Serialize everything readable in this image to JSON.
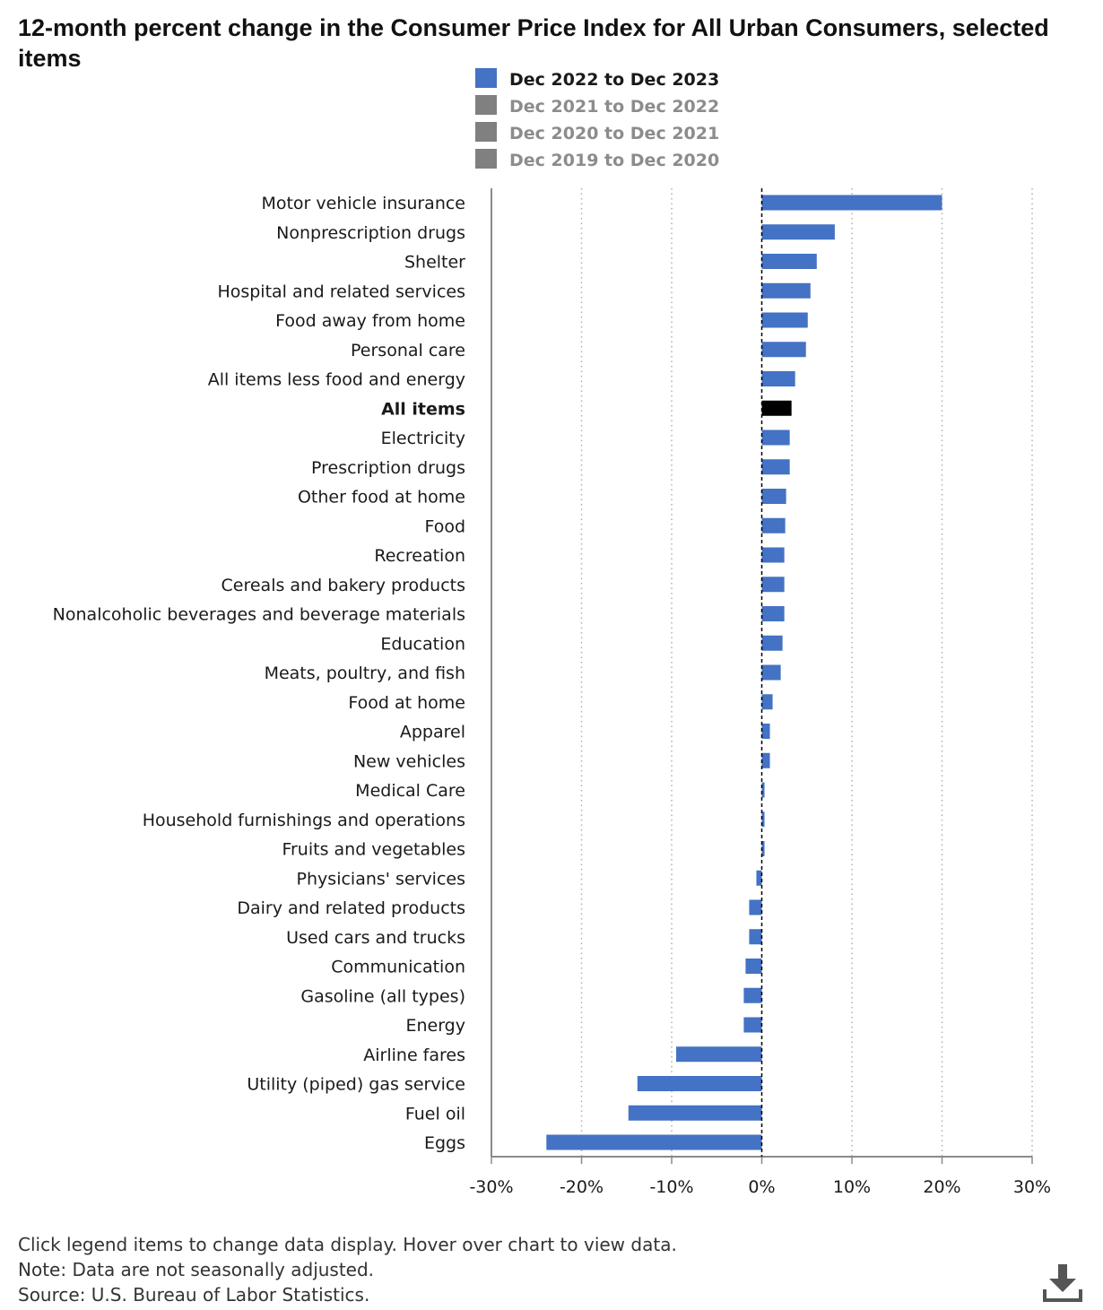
{
  "title": "12-month percent change in the Consumer Price Index for All Urban Consumers, selected items",
  "legend": [
    {
      "label": "Dec 2022 to Dec 2023",
      "color": "#4472c4",
      "active": true
    },
    {
      "label": "Dec 2021 to Dec 2022",
      "color": "#808080",
      "active": false
    },
    {
      "label": "Dec 2020 to Dec 2021",
      "color": "#808080",
      "active": false
    },
    {
      "label": "Dec 2019 to Dec 2020",
      "color": "#808080",
      "active": false
    }
  ],
  "colors": {
    "bar": "#4472c4",
    "highlight": "#000000",
    "inactive_legend_text": "#8c8c8c"
  },
  "chart_data": {
    "type": "bar",
    "orientation": "horizontal",
    "series": [
      {
        "name": "Dec 2022 to Dec 2023",
        "values": [
          20.0,
          8.1,
          6.1,
          5.4,
          5.1,
          4.9,
          3.7,
          3.3,
          3.1,
          3.1,
          2.7,
          2.6,
          2.5,
          2.5,
          2.5,
          2.3,
          2.1,
          1.2,
          0.9,
          0.9,
          0.3,
          0.3,
          0.3,
          -0.6,
          -1.4,
          -1.4,
          -1.8,
          -2.0,
          -2.0,
          -9.5,
          -13.8,
          -14.8,
          -23.9
        ]
      }
    ],
    "categories": [
      "Motor vehicle insurance",
      "Nonprescription drugs",
      "Shelter",
      "Hospital and related services",
      "Food away from home",
      "Personal care",
      "All items less food and energy",
      "All items",
      "Electricity",
      "Prescription drugs",
      "Other food at home",
      "Food",
      "Recreation",
      "Cereals and bakery products",
      "Nonalcoholic beverages and beverage materials",
      "Education",
      "Meats, poultry, and fish",
      "Food at home",
      "Apparel",
      "New vehicles",
      "Medical Care",
      "Household furnishings and operations",
      "Fruits and vegetables",
      "Physicians' services",
      "Dairy and related products",
      "Used cars and trucks",
      "Communication",
      "Gasoline (all types)",
      "Energy",
      "Airline fares",
      "Utility (piped) gas service",
      "Fuel oil",
      "Eggs"
    ],
    "highlight": "All items",
    "xlim": [
      -30,
      30
    ],
    "x_ticks": [
      -30,
      -20,
      -10,
      0,
      10,
      20,
      30
    ],
    "x_tick_labels": [
      "-30%",
      "-20%",
      "-10%",
      "0%",
      "10%",
      "20%",
      "30%"
    ],
    "grid": "vertical dotted",
    "legend_position": "top"
  },
  "footer": {
    "instructions": "Click legend items to change data display. Hover over chart to view data.",
    "note": "Note: Data are not seasonally adjusted.",
    "source": "Source: U.S. Bureau of Labor Statistics."
  },
  "icons": {
    "download": "download-icon"
  }
}
